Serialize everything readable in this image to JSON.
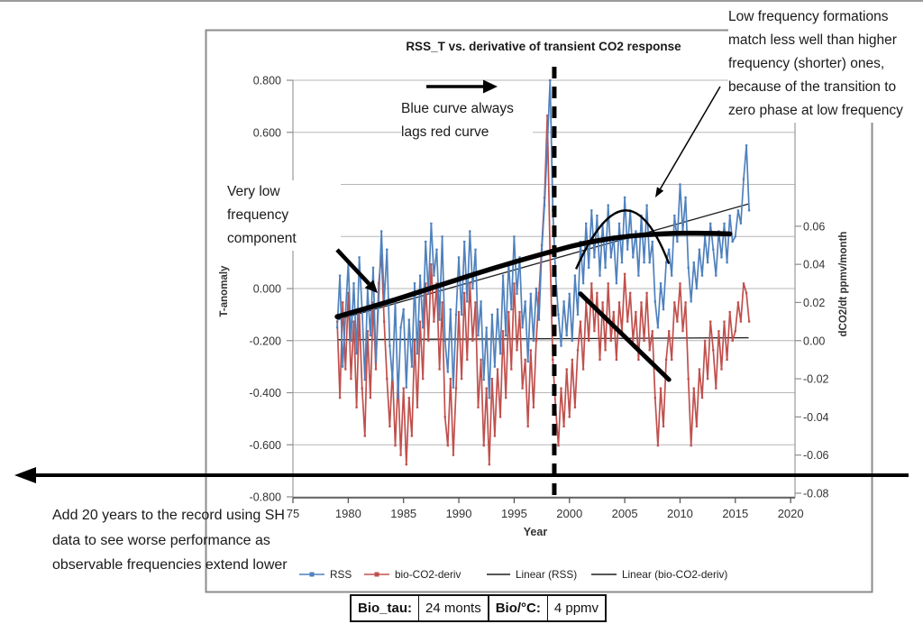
{
  "title": "RSS_T vs. derivative of transient CO2 response",
  "annotations": {
    "top_right": "Low frequency formations match less well than higher frequency (shorter) ones, because of the transition to zero phase at low frequency",
    "blue_lags": "Blue curve always lags red curve",
    "very_low": "Very low frequency component",
    "add_20_years": "Add 20 years to the record using SH data to see worse performance as observable frequencies extend lower"
  },
  "param_table": {
    "bio_tau_label": "Bio_tau:",
    "bio_tau_value": "24 monts",
    "bio_c_label": "Bio/°C:",
    "bio_c_value": "4 ppmv"
  },
  "chart_data": {
    "type": "line",
    "title": "RSS_T vs. derivative of transient CO2 response",
    "xlabel": "Year",
    "ylabel_left": "T-anomaly",
    "ylabel_right": "dCO2/dt ppmv/month",
    "xlim": [
      1975,
      2020
    ],
    "ylim_left": [
      -0.8,
      0.8
    ],
    "ylim_right_labeled": [
      -0.08,
      0.06
    ],
    "grid": true,
    "legend_position": "bottom",
    "x_ticks": [
      {
        "label": "75",
        "year": 1975
      },
      {
        "label": "1980",
        "year": 1980
      },
      {
        "label": "1985",
        "year": 1985
      },
      {
        "label": "1990",
        "year": 1990
      },
      {
        "label": "1995",
        "year": 1995
      },
      {
        "label": "2000",
        "year": 2000
      },
      {
        "label": "2005",
        "year": 2005
      },
      {
        "label": "2010",
        "year": 2010
      },
      {
        "label": "2015",
        "year": 2015
      },
      {
        "label": "2020",
        "year": 2020
      }
    ],
    "left_ticks": [
      "0.800",
      "0.600",
      "0.400",
      "0.200",
      "0.000",
      "-0.200",
      "-0.400",
      "-0.600",
      "-0.800"
    ],
    "right_ticks": [
      "0.06",
      "0.04",
      "0.02",
      "0.00",
      "-0.02",
      "-0.04",
      "-0.06",
      "-0.08"
    ],
    "colors": {
      "rss": "#4F81BD",
      "bio": "#C0504D",
      "linear": "#1f1f1f",
      "overlay": "#000000"
    },
    "legend": [
      {
        "label": "RSS",
        "color": "#4F81BD",
        "marker": true
      },
      {
        "label": "bio-CO2-deriv",
        "color": "#C0504D",
        "marker": true
      },
      {
        "label": "Linear (RSS)",
        "color": "#1f1f1f",
        "marker": false
      },
      {
        "label": "Linear (bio-CO2-deriv)",
        "color": "#1f1f1f",
        "marker": false
      }
    ],
    "series": [
      {
        "name": "RSS",
        "axis": "left",
        "color": "#4F81BD",
        "x_start": 1979.0,
        "x_step": 0.25,
        "values": [
          -0.15,
          0.05,
          -0.3,
          -0.1,
          0.1,
          -0.2,
          0.02,
          -0.25,
          0.12,
          -0.08,
          -0.35,
          0.0,
          -0.18,
          0.08,
          -0.28,
          -0.05,
          0.22,
          -0.05,
          0.15,
          -0.22,
          -0.35,
          -0.05,
          -0.42,
          -0.15,
          -0.08,
          -0.38,
          -0.12,
          -0.3,
          0.02,
          -0.25,
          0.05,
          -0.15,
          0.18,
          -0.02,
          0.25,
          0.05,
          0.15,
          -0.12,
          0.2,
          -0.2,
          -0.32,
          -0.08,
          -0.38,
          -0.1,
          0.12,
          -0.1,
          0.18,
          -0.05,
          0.22,
          0.0,
          0.15,
          -0.18,
          -0.05,
          -0.35,
          -0.15,
          -0.42,
          -0.1,
          -0.3,
          -0.08,
          -0.25,
          0.05,
          -0.18,
          0.1,
          -0.08,
          0.2,
          -0.02,
          0.12,
          -0.15,
          -0.05,
          -0.28,
          -0.02,
          -0.2,
          0.0,
          -0.12,
          0.15,
          0.32,
          0.55,
          0.8,
          0.3,
          0.05,
          -0.1,
          -0.22,
          -0.05,
          -0.18,
          -0.02,
          -0.2,
          0.05,
          -0.1,
          0.18,
          0.02,
          0.25,
          0.08,
          0.3,
          0.12,
          0.28,
          0.05,
          0.25,
          0.08,
          0.32,
          0.12,
          0.2,
          0.02,
          0.25,
          0.1,
          0.35,
          0.15,
          0.3,
          0.12,
          0.22,
          0.05,
          0.28,
          0.1,
          0.32,
          0.1,
          0.18,
          -0.05,
          -0.15,
          0.02,
          -0.08,
          0.1,
          0.15,
          0.05,
          0.28,
          0.18,
          0.4,
          0.22,
          0.35,
          0.08,
          -0.05,
          0.1,
          0.0,
          0.15,
          0.05,
          0.2,
          0.1,
          0.25,
          0.15,
          0.05,
          0.22,
          0.12,
          0.25,
          0.1,
          0.28,
          0.18,
          0.2,
          0.3,
          0.25,
          0.42,
          0.55,
          0.3
        ]
      },
      {
        "name": "bio-CO2-deriv",
        "axis": "right",
        "color": "#C0504D",
        "x_start": 1979.0,
        "x_step": 0.25,
        "values": [
          0.01,
          -0.03,
          0.02,
          -0.015,
          0.025,
          -0.02,
          0.01,
          -0.035,
          0.015,
          -0.025,
          -0.05,
          0.005,
          -0.03,
          0.02,
          -0.015,
          0.03,
          0.045,
          0.01,
          -0.02,
          -0.045,
          -0.015,
          -0.055,
          -0.02,
          -0.06,
          -0.025,
          -0.065,
          -0.03,
          -0.05,
          0.0,
          -0.035,
          0.01,
          -0.02,
          0.03,
          0.0,
          0.04,
          0.01,
          0.03,
          -0.015,
          0.02,
          -0.04,
          -0.055,
          -0.02,
          -0.06,
          -0.025,
          0.015,
          -0.02,
          0.025,
          -0.01,
          0.03,
          0.0,
          0.02,
          -0.035,
          -0.01,
          -0.055,
          -0.025,
          -0.065,
          -0.02,
          -0.05,
          -0.015,
          -0.04,
          0.005,
          -0.03,
          0.015,
          -0.015,
          0.03,
          -0.005,
          0.015,
          -0.025,
          -0.01,
          -0.045,
          -0.005,
          -0.035,
          0.0,
          0.025,
          0.05,
          0.075,
          0.118,
          0.045,
          -0.01,
          -0.035,
          -0.055,
          -0.025,
          -0.045,
          -0.015,
          -0.04,
          -0.01,
          -0.035,
          -0.005,
          0.01,
          -0.015,
          0.02,
          0.0,
          0.03,
          0.005,
          0.025,
          -0.01,
          0.02,
          -0.005,
          0.03,
          0.0,
          0.015,
          -0.01,
          0.02,
          0.005,
          0.035,
          0.01,
          0.025,
          0.0,
          0.015,
          -0.01,
          0.02,
          0.0,
          0.025,
          -0.005,
          0.005,
          -0.03,
          -0.055,
          -0.025,
          -0.045,
          -0.01,
          0.005,
          -0.01,
          0.02,
          0.01,
          0.03,
          0.005,
          0.02,
          -0.02,
          -0.055,
          -0.025,
          -0.045,
          -0.015,
          -0.03,
          0.0,
          -0.02,
          0.01,
          -0.005,
          -0.025,
          0.005,
          -0.015,
          0.01,
          -0.01,
          0.015,
          0.0,
          0.005,
          0.02,
          0.01,
          0.03,
          0.025,
          0.01
        ]
      },
      {
        "name": "Linear (RSS)",
        "axis": "left",
        "color": "#1f1f1f",
        "line": {
          "x": [
            1979.0,
            2016.2
          ],
          "y": [
            -0.12,
            0.325
          ]
        }
      },
      {
        "name": "Linear (bio-CO2-deriv)",
        "axis": "right",
        "color": "#1f1f1f",
        "line": {
          "x": [
            1979.0,
            2016.2
          ],
          "y": [
            0.0005,
            0.0015
          ]
        }
      }
    ],
    "overlays": {
      "dashed_vline_year": 1998.63,
      "thick_low_freq_curve": [
        [
          1979,
          -0.108
        ],
        [
          1983,
          -0.06
        ],
        [
          1987,
          -0.005
        ],
        [
          1991,
          0.05
        ],
        [
          1995,
          0.102
        ],
        [
          1998,
          0.138
        ],
        [
          2001,
          0.172
        ],
        [
          2004,
          0.195
        ],
        [
          2007,
          0.208
        ],
        [
          2010,
          0.213
        ],
        [
          2013,
          0.212
        ],
        [
          2014.5,
          0.21
        ]
      ],
      "arc": {
        "x1": 2000.6,
        "v1": 0.075,
        "cx": 2005.2,
        "cv": 0.515,
        "x2": 2009.0,
        "v2": 0.095
      },
      "thick_diagonal": {
        "x1": 2001.0,
        "v1": -0.02,
        "x2": 2009.0,
        "v2": -0.35
      }
    }
  }
}
